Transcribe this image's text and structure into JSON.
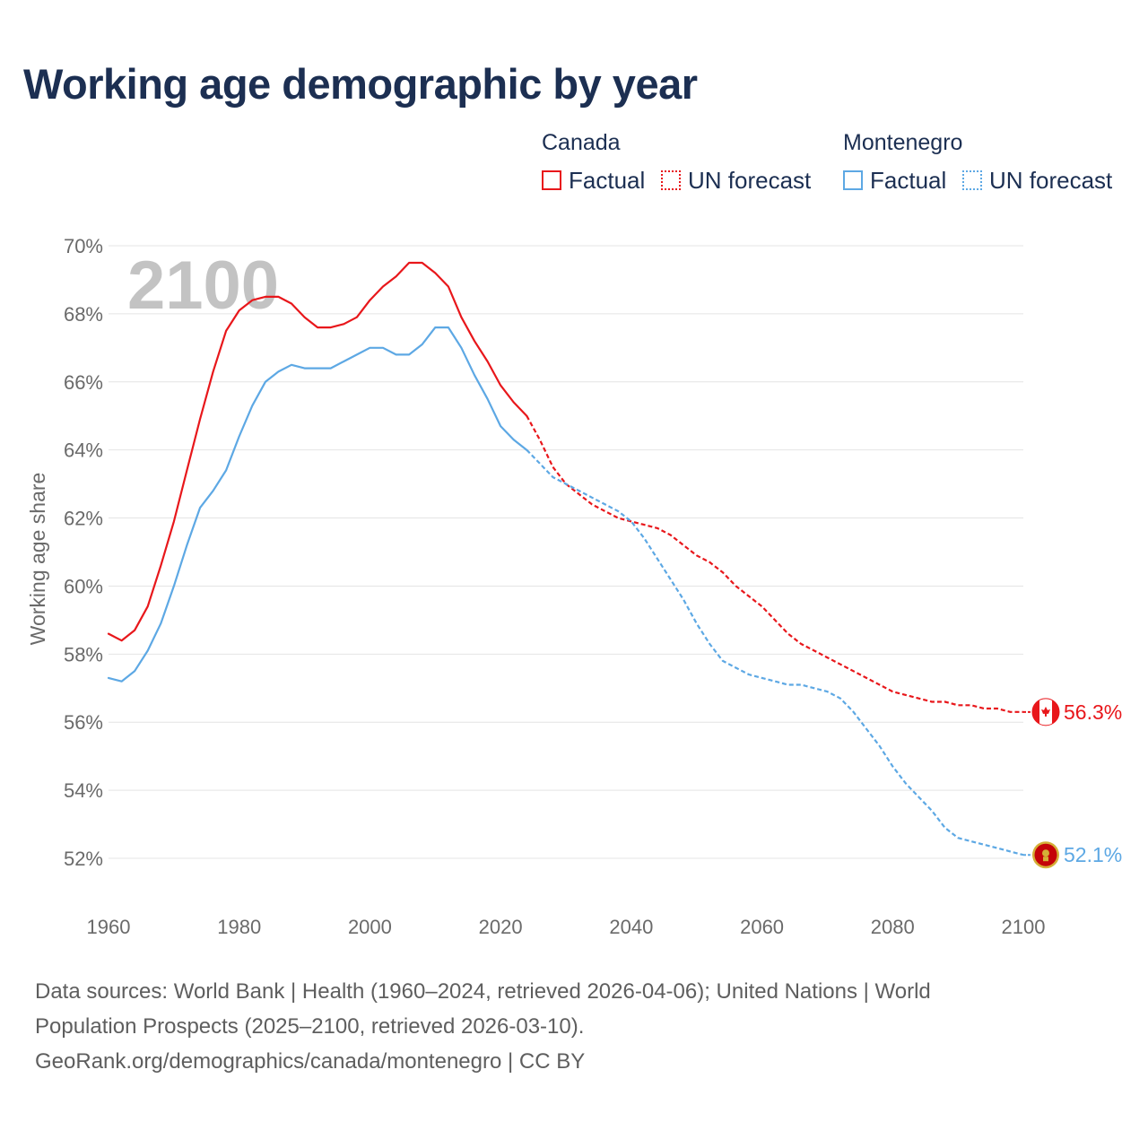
{
  "title": "Working age demographic by year",
  "legend": {
    "groups": [
      {
        "name": "Canada",
        "color": "#e8171b",
        "factual_label": "Factual",
        "forecast_label": "UN forecast"
      },
      {
        "name": "Montenegro",
        "color": "#5da8e4",
        "factual_label": "Factual",
        "forecast_label": "UN forecast"
      }
    ]
  },
  "sources": {
    "line1": "Data sources: World Bank | Health (1960–2024, retrieved 2026-04-06); United Nations | World",
    "line2": "Population Prospects (2025–2100, retrieved 2026-03-10).",
    "line3": "GeoRank.org/demographics/canada/montenegro | CC BY"
  },
  "chart_data": {
    "type": "line",
    "title": "Working age demographic by year",
    "xlabel": "",
    "ylabel": "Working age share",
    "current_year_label": "2100",
    "xlim": [
      1960,
      2100
    ],
    "ylim": [
      51,
      70
    ],
    "x_ticks": [
      1960,
      1980,
      2000,
      2020,
      2040,
      2060,
      2080,
      2100
    ],
    "y_ticks": [
      52,
      54,
      56,
      58,
      60,
      62,
      64,
      66,
      68,
      70
    ],
    "y_tick_suffix": "%",
    "factual_end_year": 2024,
    "series": [
      {
        "name": "Canada",
        "color": "#e8171b",
        "end_label": "56.3%",
        "flag_icon": "canada-flag-icon",
        "points": [
          [
            1960,
            58.6
          ],
          [
            1962,
            58.4
          ],
          [
            1964,
            58.7
          ],
          [
            1966,
            59.4
          ],
          [
            1968,
            60.6
          ],
          [
            1970,
            61.9
          ],
          [
            1972,
            63.4
          ],
          [
            1974,
            64.9
          ],
          [
            1976,
            66.3
          ],
          [
            1978,
            67.5
          ],
          [
            1980,
            68.1
          ],
          [
            1982,
            68.4
          ],
          [
            1984,
            68.5
          ],
          [
            1986,
            68.5
          ],
          [
            1988,
            68.3
          ],
          [
            1990,
            67.9
          ],
          [
            1992,
            67.6
          ],
          [
            1994,
            67.6
          ],
          [
            1996,
            67.7
          ],
          [
            1998,
            67.9
          ],
          [
            2000,
            68.4
          ],
          [
            2002,
            68.8
          ],
          [
            2004,
            69.1
          ],
          [
            2006,
            69.5
          ],
          [
            2008,
            69.5
          ],
          [
            2010,
            69.2
          ],
          [
            2012,
            68.8
          ],
          [
            2014,
            67.9
          ],
          [
            2016,
            67.2
          ],
          [
            2018,
            66.6
          ],
          [
            2020,
            65.9
          ],
          [
            2022,
            65.4
          ],
          [
            2024,
            65.0
          ],
          [
            2026,
            64.3
          ],
          [
            2028,
            63.5
          ],
          [
            2030,
            63.0
          ],
          [
            2032,
            62.7
          ],
          [
            2034,
            62.4
          ],
          [
            2036,
            62.2
          ],
          [
            2038,
            62.0
          ],
          [
            2040,
            61.9
          ],
          [
            2042,
            61.8
          ],
          [
            2044,
            61.7
          ],
          [
            2046,
            61.5
          ],
          [
            2048,
            61.2
          ],
          [
            2050,
            60.9
          ],
          [
            2052,
            60.7
          ],
          [
            2054,
            60.4
          ],
          [
            2056,
            60.0
          ],
          [
            2058,
            59.7
          ],
          [
            2060,
            59.4
          ],
          [
            2062,
            59.0
          ],
          [
            2064,
            58.6
          ],
          [
            2066,
            58.3
          ],
          [
            2068,
            58.1
          ],
          [
            2070,
            57.9
          ],
          [
            2072,
            57.7
          ],
          [
            2074,
            57.5
          ],
          [
            2076,
            57.3
          ],
          [
            2078,
            57.1
          ],
          [
            2080,
            56.9
          ],
          [
            2082,
            56.8
          ],
          [
            2084,
            56.7
          ],
          [
            2086,
            56.6
          ],
          [
            2088,
            56.6
          ],
          [
            2090,
            56.5
          ],
          [
            2092,
            56.5
          ],
          [
            2094,
            56.4
          ],
          [
            2096,
            56.4
          ],
          [
            2098,
            56.3
          ],
          [
            2100,
            56.3
          ]
        ]
      },
      {
        "name": "Montenegro",
        "color": "#5da8e4",
        "end_label": "52.1%",
        "flag_icon": "montenegro-flag-icon",
        "points": [
          [
            1960,
            57.3
          ],
          [
            1962,
            57.2
          ],
          [
            1964,
            57.5
          ],
          [
            1966,
            58.1
          ],
          [
            1968,
            58.9
          ],
          [
            1970,
            60.0
          ],
          [
            1972,
            61.2
          ],
          [
            1974,
            62.3
          ],
          [
            1976,
            62.8
          ],
          [
            1978,
            63.4
          ],
          [
            1980,
            64.4
          ],
          [
            1982,
            65.3
          ],
          [
            1984,
            66.0
          ],
          [
            1986,
            66.3
          ],
          [
            1988,
            66.5
          ],
          [
            1990,
            66.4
          ],
          [
            1992,
            66.4
          ],
          [
            1994,
            66.4
          ],
          [
            1996,
            66.6
          ],
          [
            1998,
            66.8
          ],
          [
            2000,
            67.0
          ],
          [
            2002,
            67.0
          ],
          [
            2004,
            66.8
          ],
          [
            2006,
            66.8
          ],
          [
            2008,
            67.1
          ],
          [
            2010,
            67.6
          ],
          [
            2012,
            67.6
          ],
          [
            2014,
            67.0
          ],
          [
            2016,
            66.2
          ],
          [
            2018,
            65.5
          ],
          [
            2020,
            64.7
          ],
          [
            2022,
            64.3
          ],
          [
            2024,
            64.0
          ],
          [
            2026,
            63.6
          ],
          [
            2028,
            63.2
          ],
          [
            2030,
            63.0
          ],
          [
            2032,
            62.8
          ],
          [
            2034,
            62.6
          ],
          [
            2036,
            62.4
          ],
          [
            2038,
            62.2
          ],
          [
            2040,
            61.9
          ],
          [
            2042,
            61.4
          ],
          [
            2044,
            60.8
          ],
          [
            2046,
            60.2
          ],
          [
            2048,
            59.6
          ],
          [
            2050,
            58.9
          ],
          [
            2052,
            58.3
          ],
          [
            2054,
            57.8
          ],
          [
            2056,
            57.6
          ],
          [
            2058,
            57.4
          ],
          [
            2060,
            57.3
          ],
          [
            2062,
            57.2
          ],
          [
            2064,
            57.1
          ],
          [
            2066,
            57.1
          ],
          [
            2068,
            57.0
          ],
          [
            2070,
            56.9
          ],
          [
            2072,
            56.7
          ],
          [
            2074,
            56.3
          ],
          [
            2076,
            55.8
          ],
          [
            2078,
            55.3
          ],
          [
            2080,
            54.7
          ],
          [
            2082,
            54.2
          ],
          [
            2084,
            53.8
          ],
          [
            2086,
            53.4
          ],
          [
            2088,
            52.9
          ],
          [
            2090,
            52.6
          ],
          [
            2092,
            52.5
          ],
          [
            2094,
            52.4
          ],
          [
            2096,
            52.3
          ],
          [
            2098,
            52.2
          ],
          [
            2100,
            52.1
          ]
        ]
      }
    ]
  }
}
